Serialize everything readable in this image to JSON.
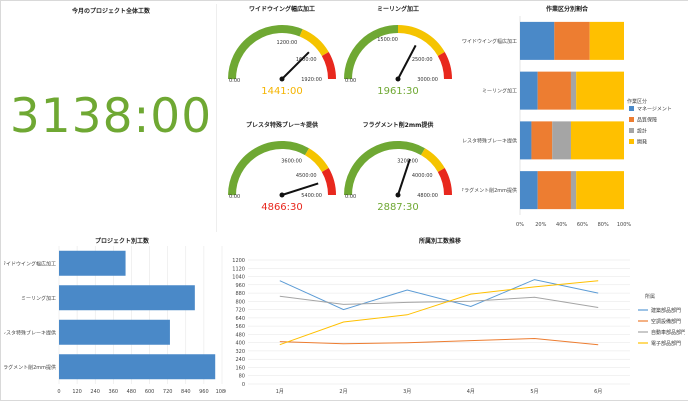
{
  "big_number": {
    "title": "今月のプロジェクト全体工数",
    "value": "3138:00",
    "color": "#6fa833"
  },
  "gauges": [
    {
      "title": "ワイドウイング幅広加工",
      "value_text": "1441:00",
      "value_hours": 1441,
      "min_label": "0:00",
      "ticks": [
        "1200:00",
        "1600:00",
        "1920:00"
      ],
      "max": 1920,
      "green_to": 1200,
      "yellow_to": 1600,
      "value_color": "#f5b400"
    },
    {
      "title": "ミーリング加工",
      "value_text": "1961:30",
      "value_hours": 1961.5,
      "min_label": "0:00",
      "ticks": [
        "1500:00",
        "2500:00",
        "3000:00"
      ],
      "max": 3000,
      "green_to": 1500,
      "yellow_to": 2500,
      "value_color": "#6fa833"
    },
    {
      "title": "プレスタ特殊ブレーキ提供",
      "value_text": "4866:30",
      "value_hours": 4866.5,
      "min_label": "0:00",
      "ticks": [
        "3600:00",
        "4500:00",
        "5400:00"
      ],
      "max": 5400,
      "green_to": 3600,
      "yellow_to": 4500,
      "value_color": "#e8281e"
    },
    {
      "title": "フラグメント削2mm提供",
      "value_text": "2887:30",
      "value_hours": 2887.5,
      "min_label": "0:00",
      "ticks": [
        "3200:00",
        "4000:00",
        "4800:00"
      ],
      "max": 4800,
      "green_to": 3200,
      "yellow_to": 4000,
      "value_color": "#6fa833"
    }
  ],
  "gauge_colors": {
    "green": "#6fa833",
    "yellow": "#f5c400",
    "red": "#e8281e",
    "needle": "#111111"
  },
  "chart_data": [
    {
      "type": "bar",
      "orientation": "horizontal-stacked-100",
      "title": "作業区分別割合",
      "categories": [
        "ワイドウイング幅広加工",
        "ミーリング加工",
        "プレスタ特殊ブレーキ提供",
        "フラグメント削2mm提供"
      ],
      "series": [
        {
          "name": "マネージメント",
          "color": "#4a89c8",
          "values": [
            33,
            17,
            11,
            17
          ]
        },
        {
          "name": "品質保障",
          "color": "#ed7d31",
          "values": [
            34,
            32,
            20,
            32
          ]
        },
        {
          "name": "設計",
          "color": "#a5a5a5",
          "values": [
            0,
            5,
            18,
            5
          ]
        },
        {
          "name": "開発",
          "color": "#ffc000",
          "values": [
            33,
            46,
            51,
            46
          ]
        }
      ],
      "legend_title": "作業区分",
      "xticks": [
        "0%",
        "20%",
        "40%",
        "60%",
        "80%",
        "100%"
      ],
      "xlim": [
        0,
        100
      ]
    },
    {
      "type": "bar",
      "orientation": "horizontal",
      "title": "プロジェクト別工数",
      "categories": [
        "ワイドウイング幅広加工",
        "ミーリング加工",
        "プレスタ特殊ブレーキ提供",
        "フラグメント削2mm提供"
      ],
      "values": [
        441,
        900,
        735,
        1035
      ],
      "color": "#4a89c8",
      "xticks": [
        "0",
        "120",
        "240",
        "360",
        "480",
        "600",
        "720",
        "840",
        "960",
        "1080"
      ],
      "xlim": [
        0,
        1080
      ]
    },
    {
      "type": "line",
      "title": "所属別工数推移",
      "categories": [
        "1月",
        "2月",
        "3月",
        "4月",
        "5月",
        "6月"
      ],
      "yticks": [
        "0",
        "80",
        "160",
        "240",
        "320",
        "400",
        "480",
        "560",
        "640",
        "720",
        "800",
        "880",
        "960",
        "1040",
        "1120",
        "1200"
      ],
      "ylim": [
        0,
        1200
      ],
      "legend_title": "所属",
      "series": [
        {
          "name": "建築部品部門",
          "color": "#5b9bd5",
          "values": [
            1000,
            720,
            910,
            750,
            1010,
            880
          ]
        },
        {
          "name": "空調設備部門",
          "color": "#ed7d31",
          "values": [
            410,
            390,
            400,
            420,
            440,
            380
          ]
        },
        {
          "name": "自動車部品部門",
          "color": "#a5a5a5",
          "values": [
            850,
            770,
            790,
            800,
            840,
            740
          ]
        },
        {
          "name": "電子部品部門",
          "color": "#ffc000",
          "values": [
            380,
            600,
            670,
            870,
            940,
            1000
          ]
        }
      ]
    }
  ]
}
